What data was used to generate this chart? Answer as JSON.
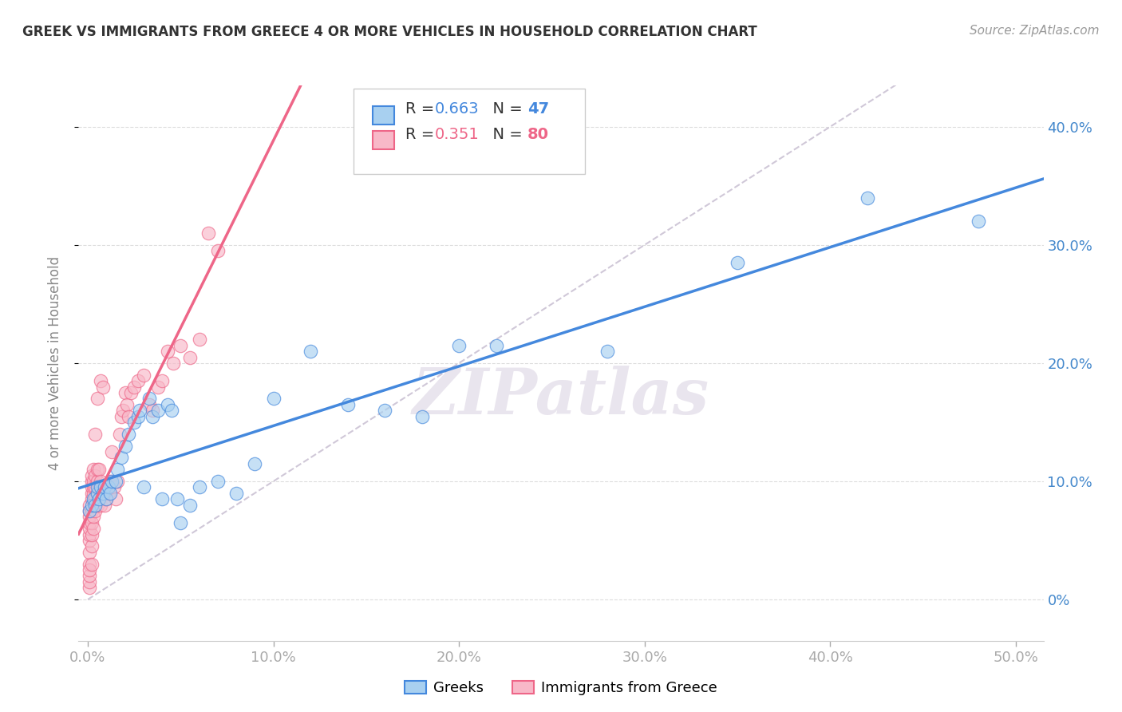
{
  "title": "GREEK VS IMMIGRANTS FROM GREECE 4 OR MORE VEHICLES IN HOUSEHOLD CORRELATION CHART",
  "source": "Source: ZipAtlas.com",
  "xlabel_vals": [
    0.0,
    0.1,
    0.2,
    0.3,
    0.4,
    0.5
  ],
  "ylabel": "4 or more Vehicles in Household",
  "ylabel_right_vals": [
    0.0,
    0.1,
    0.2,
    0.3,
    0.4
  ],
  "blue_R": 0.663,
  "blue_N": 47,
  "pink_R": 0.351,
  "pink_N": 80,
  "blue_color": "#A8D0F0",
  "pink_color": "#F8B8C8",
  "blue_line_color": "#4488DD",
  "pink_line_color": "#EE6688",
  "diagonal_color": "#D0C8D8",
  "watermark": "ZIPatlas",
  "blue_points_x": [
    0.001,
    0.002,
    0.003,
    0.004,
    0.005,
    0.005,
    0.006,
    0.007,
    0.008,
    0.009,
    0.01,
    0.011,
    0.012,
    0.013,
    0.015,
    0.016,
    0.018,
    0.02,
    0.022,
    0.025,
    0.027,
    0.028,
    0.03,
    0.033,
    0.035,
    0.038,
    0.04,
    0.043,
    0.045,
    0.048,
    0.05,
    0.055,
    0.06,
    0.07,
    0.08,
    0.09,
    0.1,
    0.12,
    0.14,
    0.16,
    0.18,
    0.2,
    0.22,
    0.28,
    0.35,
    0.42,
    0.48
  ],
  "blue_points_y": [
    0.075,
    0.08,
    0.085,
    0.08,
    0.09,
    0.095,
    0.085,
    0.095,
    0.09,
    0.095,
    0.085,
    0.095,
    0.09,
    0.1,
    0.1,
    0.11,
    0.12,
    0.13,
    0.14,
    0.15,
    0.155,
    0.16,
    0.095,
    0.17,
    0.155,
    0.16,
    0.085,
    0.165,
    0.16,
    0.085,
    0.065,
    0.08,
    0.095,
    0.1,
    0.09,
    0.115,
    0.17,
    0.21,
    0.165,
    0.16,
    0.155,
    0.215,
    0.215,
    0.21,
    0.285,
    0.34,
    0.32
  ],
  "pink_points_x": [
    0.001,
    0.001,
    0.001,
    0.001,
    0.001,
    0.001,
    0.001,
    0.001,
    0.001,
    0.001,
    0.001,
    0.001,
    0.002,
    0.002,
    0.002,
    0.002,
    0.002,
    0.002,
    0.002,
    0.002,
    0.002,
    0.003,
    0.003,
    0.003,
    0.003,
    0.003,
    0.003,
    0.003,
    0.004,
    0.004,
    0.004,
    0.004,
    0.004,
    0.005,
    0.005,
    0.005,
    0.005,
    0.005,
    0.006,
    0.006,
    0.006,
    0.007,
    0.007,
    0.007,
    0.007,
    0.008,
    0.008,
    0.009,
    0.009,
    0.01,
    0.01,
    0.011,
    0.012,
    0.013,
    0.014,
    0.015,
    0.016,
    0.017,
    0.018,
    0.019,
    0.02,
    0.021,
    0.022,
    0.023,
    0.025,
    0.027,
    0.03,
    0.033,
    0.035,
    0.038,
    0.04,
    0.043,
    0.046,
    0.05,
    0.055,
    0.06,
    0.065,
    0.07,
    0.001,
    0.002
  ],
  "pink_points_y": [
    0.01,
    0.015,
    0.02,
    0.03,
    0.04,
    0.05,
    0.055,
    0.06,
    0.065,
    0.07,
    0.075,
    0.08,
    0.045,
    0.055,
    0.065,
    0.075,
    0.085,
    0.09,
    0.095,
    0.1,
    0.105,
    0.06,
    0.07,
    0.08,
    0.09,
    0.095,
    0.1,
    0.11,
    0.075,
    0.085,
    0.095,
    0.105,
    0.14,
    0.08,
    0.09,
    0.1,
    0.11,
    0.17,
    0.085,
    0.095,
    0.11,
    0.08,
    0.09,
    0.1,
    0.185,
    0.095,
    0.18,
    0.08,
    0.09,
    0.085,
    0.095,
    0.09,
    0.1,
    0.125,
    0.095,
    0.085,
    0.1,
    0.14,
    0.155,
    0.16,
    0.175,
    0.165,
    0.155,
    0.175,
    0.18,
    0.185,
    0.19,
    0.165,
    0.16,
    0.18,
    0.185,
    0.21,
    0.2,
    0.215,
    0.205,
    0.22,
    0.31,
    0.295,
    0.025,
    0.03
  ],
  "xlim": [
    -0.005,
    0.515
  ],
  "ylim": [
    -0.035,
    0.435
  ],
  "background_color": "#FFFFFF",
  "grid_color": "#DDDDDD",
  "legend_blue_label": "R = 0.663   N = 47",
  "legend_pink_label": "R = 0.351   N = 80",
  "bottom_legend_1": "Greeks",
  "bottom_legend_2": "Immigrants from Greece"
}
